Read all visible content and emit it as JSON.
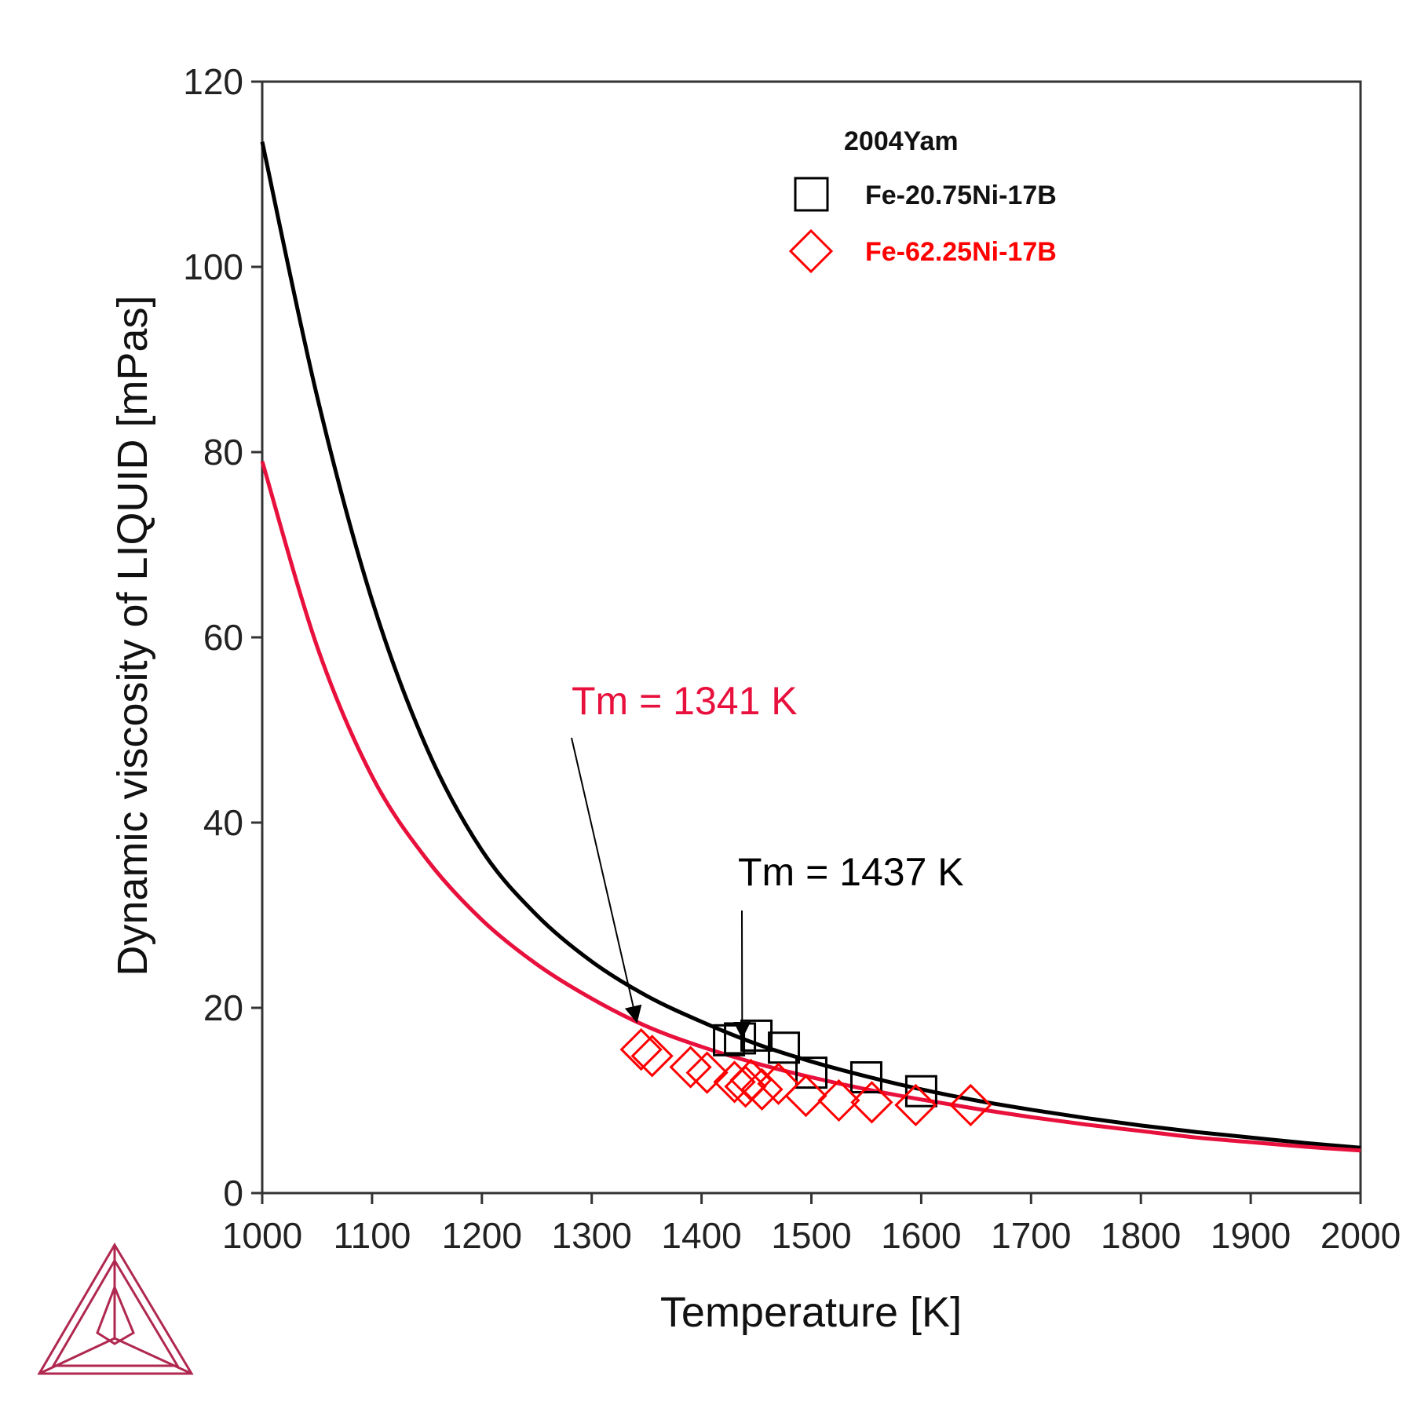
{
  "chart_data": {
    "type": "line",
    "xlabel": "Temperature [K]",
    "ylabel": "Dynamic viscosity of LIQUID [mPas]",
    "xlim": [
      1000,
      2000
    ],
    "ylim": [
      0,
      120
    ],
    "xticks": [
      1000,
      1100,
      1200,
      1300,
      1400,
      1500,
      1600,
      1700,
      1800,
      1900,
      2000
    ],
    "yticks": [
      0,
      20,
      40,
      60,
      80,
      100,
      120
    ],
    "grid": false,
    "legend": {
      "position": "top-right",
      "title": "2004Yam",
      "entries": [
        {
          "label": "Fe-20.75Ni-17B",
          "marker": "square",
          "color": "#000000"
        },
        {
          "label": "Fe-62.25Ni-17B",
          "marker": "diamond",
          "color": "#ff0000"
        }
      ]
    },
    "series": [
      {
        "kind": "line",
        "color": "#000000",
        "x": [
          1000,
          1050,
          1100,
          1150,
          1200,
          1250,
          1300,
          1350,
          1400,
          1450,
          1500,
          1550,
          1600,
          1650,
          1700,
          1750,
          1800,
          1850,
          1900,
          1950,
          2000
        ],
        "y": [
          113.5,
          86,
          64,
          48,
          37,
          30,
          25,
          21.3,
          18.5,
          16.1,
          14.2,
          12.6,
          11.2,
          10.0,
          9.0,
          8.1,
          7.3,
          6.6,
          6.0,
          5.4,
          4.9
        ]
      },
      {
        "kind": "line",
        "color": "#e8103c",
        "x": [
          1000,
          1050,
          1100,
          1150,
          1200,
          1250,
          1300,
          1350,
          1400,
          1450,
          1500,
          1550,
          1600,
          1650,
          1700,
          1750,
          1800,
          1850,
          1900,
          1950,
          2000
        ],
        "y": [
          79,
          59,
          45,
          36,
          29.5,
          24.7,
          21,
          18,
          15.8,
          14.0,
          12.5,
          11.2,
          10.1,
          9.1,
          8.2,
          7.4,
          6.7,
          6.0,
          5.5,
          5.0,
          4.6
        ]
      },
      {
        "kind": "scatter",
        "marker": "square",
        "color": "#000000",
        "x": [
          1425,
          1435,
          1450,
          1475,
          1500,
          1550,
          1600
        ],
        "y": [
          16.5,
          16.7,
          17.0,
          15.7,
          13.0,
          12.5,
          11.0
        ]
      },
      {
        "kind": "scatter",
        "marker": "diamond",
        "color": "#ff0000",
        "x": [
          1345,
          1355,
          1390,
          1405,
          1430,
          1440,
          1445,
          1455,
          1470,
          1495,
          1525,
          1555,
          1595,
          1645
        ],
        "y": [
          15.5,
          14.8,
          13.6,
          13.0,
          12.0,
          11.5,
          12.2,
          11.2,
          11.8,
          10.5,
          10.0,
          9.8,
          9.5,
          9.5
        ]
      }
    ],
    "annotations": [
      {
        "text": "Tm = 1341 K",
        "color": "#e8103c",
        "point": [
          1341,
          18.5
        ]
      },
      {
        "text": "Tm = 1437 K",
        "color": "#000000",
        "point": [
          1437,
          16.8
        ]
      }
    ]
  }
}
